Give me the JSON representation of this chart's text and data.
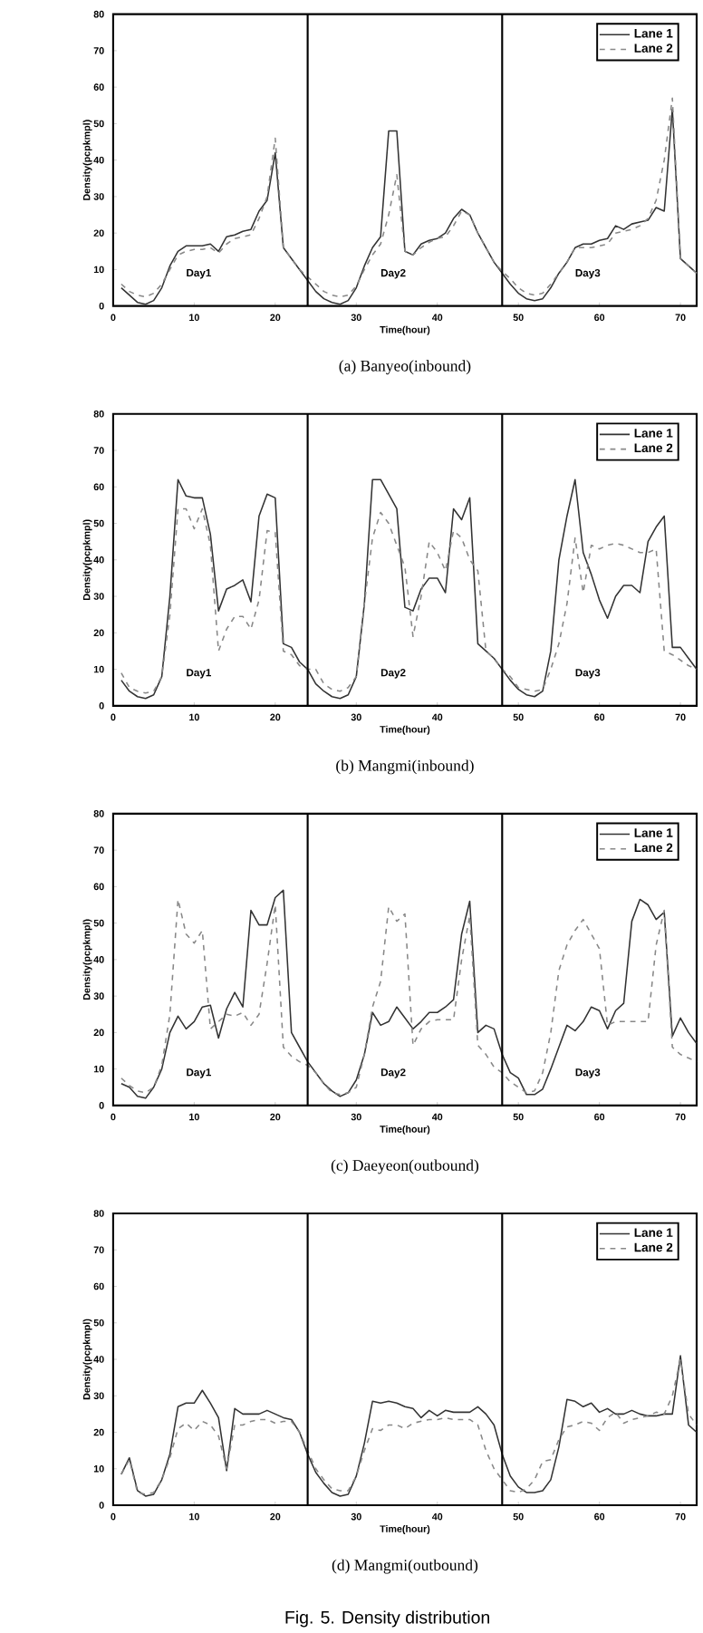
{
  "chart_data": [
    {
      "type": "line",
      "title": "(a) Banyeo(inbound)",
      "xlabel": "Time(hour)",
      "ylabel": "Density(pcpkmpl)",
      "xlim": [
        0,
        72
      ],
      "ylim": [
        0,
        80
      ],
      "xticks": [
        0,
        10,
        20,
        30,
        40,
        50,
        60,
        70
      ],
      "yticks": [
        0,
        10,
        20,
        30,
        40,
        50,
        60,
        70,
        80
      ],
      "legend": "top right",
      "grid": false,
      "marker": "none",
      "x": [
        1,
        2,
        3,
        4,
        5,
        6,
        7,
        8,
        9,
        10,
        11,
        12,
        13,
        14,
        15,
        16,
        17,
        18,
        19,
        20,
        21,
        22,
        23,
        24,
        25,
        26,
        27,
        28,
        29,
        30,
        31,
        32,
        33,
        34,
        35,
        36,
        37,
        38,
        39,
        40,
        41,
        42,
        43,
        44,
        45,
        46,
        47,
        48,
        49,
        50,
        51,
        52,
        53,
        54,
        55,
        56,
        57,
        58,
        59,
        60,
        61,
        62,
        63,
        64,
        65,
        66,
        67,
        68,
        69,
        70,
        71,
        72
      ],
      "series": [
        {
          "name": "Lane 1",
          "color": "#333333",
          "line_style": "solid",
          "values": [
            5,
            3,
            1,
            0.5,
            1.5,
            5,
            11,
            15,
            16.5,
            16.5,
            16.5,
            17,
            15,
            19,
            19.5,
            20.5,
            21,
            26,
            29,
            42,
            16,
            13,
            10,
            7,
            4,
            2,
            1,
            0.5,
            1.5,
            5,
            11,
            16,
            19,
            48,
            48,
            15,
            14,
            17,
            18,
            18.5,
            20,
            24,
            26.5,
            25,
            20,
            16,
            12,
            9,
            6,
            3.5,
            2,
            1.5,
            2,
            5,
            9,
            12,
            16,
            17,
            17,
            18,
            18.5,
            22,
            21,
            22.5,
            23,
            23.5,
            27,
            26,
            54,
            13,
            11,
            9
          ]
        },
        {
          "name": "Lane 2",
          "color": "#888888",
          "line_style": "dashed",
          "values": [
            6,
            4,
            3,
            2.5,
            3.5,
            6,
            10,
            14,
            15,
            15.5,
            15.5,
            16,
            14.5,
            17,
            18.5,
            19,
            19.5,
            24,
            30,
            46,
            16,
            13,
            10,
            8,
            6,
            4,
            3,
            2.5,
            3,
            5.5,
            10,
            14,
            17,
            25,
            36,
            15,
            14,
            16,
            17.5,
            18.5,
            19,
            22,
            26,
            25,
            20,
            16,
            12,
            9.5,
            7.5,
            5,
            3.5,
            3,
            3.5,
            6,
            9,
            12,
            16,
            16,
            16,
            16.5,
            17,
            20,
            20.5,
            21,
            22,
            24,
            29,
            40,
            57,
            13,
            11,
            9
          ]
        }
      ],
      "ref_lines": [
        {
          "axis": "x",
          "value": 24,
          "color": "#000000"
        },
        {
          "axis": "x",
          "value": 48,
          "color": "#000000"
        }
      ],
      "annotations": [
        "Day1",
        "Day2",
        "Day3"
      ]
    },
    {
      "type": "line",
      "title": "(b) Mangmi(inbound)",
      "xlabel": "Time(hour)",
      "ylabel": "Density(pcpkmpl)",
      "xlim": [
        0,
        72
      ],
      "ylim": [
        0,
        80
      ],
      "xticks": [
        0,
        10,
        20,
        30,
        40,
        50,
        60,
        70
      ],
      "yticks": [
        0,
        10,
        20,
        30,
        40,
        50,
        60,
        70,
        80
      ],
      "legend": "top right",
      "grid": false,
      "marker": "none",
      "x": [
        1,
        2,
        3,
        4,
        5,
        6,
        7,
        8,
        9,
        10,
        11,
        12,
        13,
        14,
        15,
        16,
        17,
        18,
        19,
        20,
        21,
        22,
        23,
        24,
        25,
        26,
        27,
        28,
        29,
        30,
        31,
        32,
        33,
        34,
        35,
        36,
        37,
        38,
        39,
        40,
        41,
        42,
        43,
        44,
        45,
        46,
        47,
        48,
        49,
        50,
        51,
        52,
        53,
        54,
        55,
        56,
        57,
        58,
        59,
        60,
        61,
        62,
        63,
        64,
        65,
        66,
        67,
        68,
        69,
        70,
        71,
        72
      ],
      "series": [
        {
          "name": "Lane 1",
          "color": "#333333",
          "line_style": "solid",
          "values": [
            7,
            4,
            2.5,
            2,
            3,
            8,
            30,
            62,
            57.5,
            57,
            57,
            47,
            26,
            32,
            33,
            34.5,
            28.5,
            52,
            58,
            57,
            17,
            16,
            12,
            10,
            6,
            4,
            2.5,
            2,
            3,
            8,
            28,
            62,
            62,
            58,
            54,
            27,
            26,
            32,
            35,
            35,
            31,
            54,
            51,
            57,
            17,
            15,
            13,
            10,
            7,
            4.5,
            3,
            2.5,
            4,
            15,
            40,
            52,
            62,
            42,
            36,
            29,
            24,
            30,
            33,
            33,
            31,
            45,
            49,
            52,
            16,
            16,
            13,
            10
          ]
        },
        {
          "name": "Lane 2",
          "color": "#888888",
          "line_style": "dashed",
          "values": [
            9,
            5,
            4,
            3.5,
            4,
            8,
            25,
            54,
            54,
            48.5,
            54,
            44,
            15,
            21,
            24.5,
            24.5,
            21,
            29,
            48,
            47.5,
            15,
            14,
            11,
            10,
            10,
            6,
            4.5,
            4,
            5,
            8,
            28,
            46,
            53,
            50,
            44,
            38,
            19,
            30,
            45,
            42,
            37,
            48,
            46,
            40,
            37,
            15,
            13,
            10,
            8,
            5,
            4.5,
            4,
            4.5,
            10,
            17,
            28,
            46,
            31,
            44,
            43,
            44,
            44.5,
            44,
            43,
            42,
            42,
            43,
            15,
            14,
            12.5,
            11,
            10
          ]
        }
      ],
      "ref_lines": [
        {
          "axis": "x",
          "value": 24,
          "color": "#000000"
        },
        {
          "axis": "x",
          "value": 48,
          "color": "#000000"
        }
      ],
      "annotations": [
        "Day1",
        "Day2",
        "Day3"
      ]
    },
    {
      "type": "line",
      "title": "(c) Daeyeon(outbound)",
      "xlabel": "Time(hour)",
      "ylabel": "Density(pcpkmpl)",
      "xlim": [
        0,
        72
      ],
      "ylim": [
        0,
        80
      ],
      "xticks": [
        0,
        10,
        20,
        30,
        40,
        50,
        60,
        70
      ],
      "yticks": [
        0,
        10,
        20,
        30,
        40,
        50,
        60,
        70,
        80
      ],
      "legend": "top right",
      "grid": false,
      "marker": "none",
      "x": [
        1,
        2,
        3,
        4,
        5,
        6,
        7,
        8,
        9,
        10,
        11,
        12,
        13,
        14,
        15,
        16,
        17,
        18,
        19,
        20,
        21,
        22,
        23,
        24,
        25,
        26,
        27,
        28,
        29,
        30,
        31,
        32,
        33,
        34,
        35,
        36,
        37,
        38,
        39,
        40,
        41,
        42,
        43,
        44,
        45,
        46,
        47,
        48,
        49,
        50,
        51,
        52,
        53,
        54,
        55,
        56,
        57,
        58,
        59,
        60,
        61,
        62,
        63,
        64,
        65,
        66,
        67,
        68,
        69,
        70,
        71,
        72
      ],
      "series": [
        {
          "name": "Lane 1",
          "color": "#333333",
          "line_style": "solid",
          "values": [
            6,
            5,
            2.5,
            2,
            5,
            10,
            20,
            24.5,
            21,
            23,
            27,
            27.5,
            18.5,
            26.5,
            31,
            27,
            53.5,
            49.5,
            49.5,
            57,
            59,
            20,
            16,
            12,
            9,
            6,
            4,
            2.5,
            3.5,
            7,
            14,
            25.5,
            22,
            23,
            27,
            24,
            21,
            23,
            25.5,
            25.5,
            27,
            29,
            47,
            56,
            20,
            22,
            21,
            14,
            9,
            7.5,
            3,
            3,
            4.5,
            10,
            16,
            22,
            20.5,
            23,
            27,
            26,
            21,
            26,
            28,
            50.5,
            56.5,
            55,
            51,
            53,
            19,
            24,
            20,
            17
          ]
        },
        {
          "name": "Lane 2",
          "color": "#888888",
          "line_style": "dashed",
          "values": [
            7.5,
            5.5,
            4,
            3.5,
            5,
            11,
            25,
            56.5,
            47,
            44.5,
            48,
            21,
            23,
            25,
            24.5,
            25.5,
            22,
            25,
            39,
            55,
            16,
            13.5,
            12,
            11,
            9,
            6,
            3.5,
            3,
            3.5,
            5,
            14,
            27,
            34,
            54.5,
            50.5,
            52.5,
            16.5,
            21,
            23,
            23.5,
            23.5,
            23.5,
            40,
            52,
            16.5,
            14,
            10.5,
            9,
            6.5,
            5,
            3.5,
            4,
            9,
            20,
            37,
            44,
            48,
            51,
            47,
            43,
            22,
            23,
            23,
            23,
            23,
            23,
            44,
            53.5,
            16,
            14,
            13,
            12
          ]
        }
      ],
      "ref_lines": [
        {
          "axis": "x",
          "value": 24,
          "color": "#000000"
        },
        {
          "axis": "x",
          "value": 48,
          "color": "#000000"
        }
      ],
      "annotations": [
        "Day1",
        "Day2",
        "Day3"
      ]
    },
    {
      "type": "line",
      "title": "(d) Mangmi(outbound)",
      "xlabel": "Time(hour)",
      "ylabel": "Density(pcpkmpl)",
      "xlim": [
        0,
        72
      ],
      "ylim": [
        0,
        80
      ],
      "xticks": [
        0,
        10,
        20,
        30,
        40,
        50,
        60,
        70
      ],
      "yticks": [
        0,
        10,
        20,
        30,
        40,
        50,
        60,
        70,
        80
      ],
      "legend": "top right",
      "grid": false,
      "marker": "none",
      "x": [
        1,
        2,
        3,
        4,
        5,
        6,
        7,
        8,
        9,
        10,
        11,
        12,
        13,
        14,
        15,
        16,
        17,
        18,
        19,
        20,
        21,
        22,
        23,
        24,
        25,
        26,
        27,
        28,
        29,
        30,
        31,
        32,
        33,
        34,
        35,
        36,
        37,
        38,
        39,
        40,
        41,
        42,
        43,
        44,
        45,
        46,
        47,
        48,
        49,
        50,
        51,
        52,
        53,
        54,
        55,
        56,
        57,
        58,
        59,
        60,
        61,
        62,
        63,
        64,
        65,
        66,
        67,
        68,
        69,
        70,
        71,
        72
      ],
      "series": [
        {
          "name": "Lane 1",
          "color": "#333333",
          "line_style": "solid",
          "values": [
            8.5,
            13,
            4,
            2.5,
            3,
            7,
            14,
            27,
            28,
            28,
            31.5,
            28,
            24,
            9.5,
            26.5,
            25,
            25,
            25,
            26,
            25,
            24,
            23.5,
            20,
            14,
            9,
            6,
            3.5,
            2.5,
            3,
            8,
            17,
            28.5,
            28,
            28.5,
            28,
            27,
            26.5,
            24,
            26,
            24.5,
            26,
            25.5,
            25.5,
            25.5,
            27,
            25,
            22,
            14,
            8,
            5,
            3.5,
            3.5,
            4,
            7,
            16,
            29,
            28.5,
            27,
            28,
            25.5,
            26.5,
            25,
            25,
            26,
            25,
            24.5,
            24.5,
            25,
            25,
            41,
            22,
            20
          ]
        },
        {
          "name": "Lane 2",
          "color": "#888888",
          "line_style": "dashed",
          "values": [
            8.5,
            12.5,
            3.5,
            3,
            3.5,
            7,
            13,
            21,
            22.5,
            20.5,
            23,
            22,
            19,
            10,
            22,
            22,
            23,
            23.5,
            23.5,
            22.5,
            23,
            23,
            20,
            15,
            10,
            7,
            4.5,
            4,
            4,
            8,
            15,
            21,
            20.5,
            22,
            22,
            21,
            22.5,
            23,
            23.5,
            23.5,
            24,
            23.5,
            23.5,
            23.5,
            22,
            15,
            10,
            7,
            4,
            3.5,
            4.5,
            7,
            12,
            12.5,
            18,
            21.5,
            22,
            23,
            22.5,
            20.5,
            24,
            25.5,
            22.5,
            23.5,
            24,
            24.5,
            25.5,
            25,
            30,
            40,
            25,
            22
          ]
        }
      ],
      "ref_lines": [
        {
          "axis": "x",
          "value": 24,
          "color": "#000000"
        },
        {
          "axis": "x",
          "value": 48,
          "color": "#000000"
        }
      ],
      "annotations": [
        "Fig. 5. Density distribution"
      ]
    }
  ]
}
